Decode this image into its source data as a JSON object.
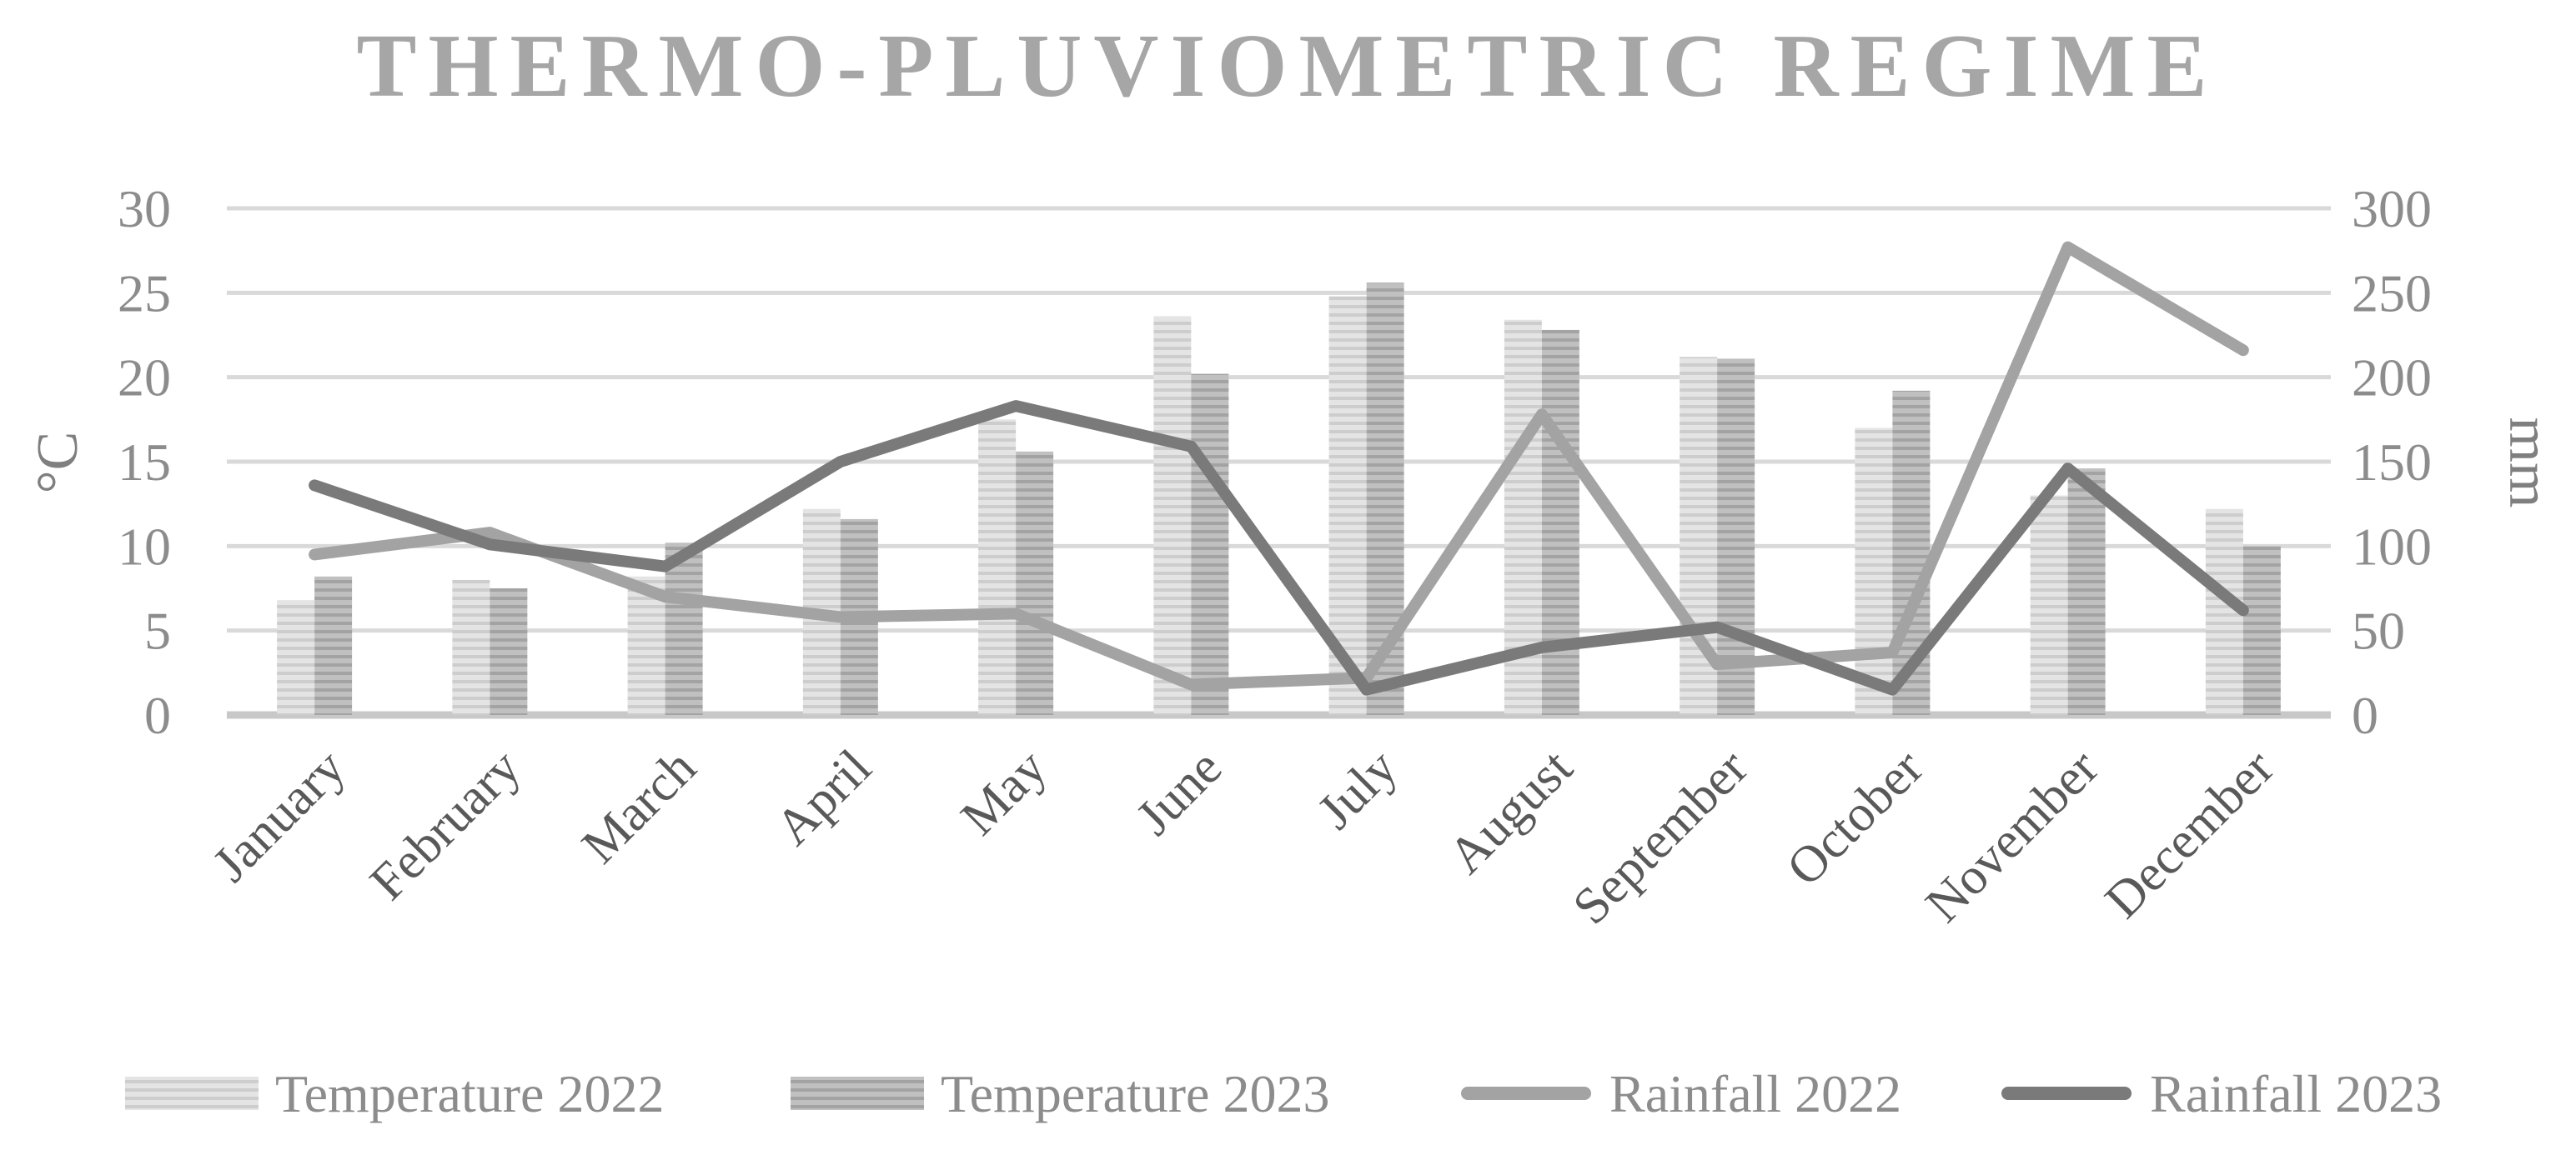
{
  "chart_data": {
    "type": "bar+line",
    "title": "THERMO-PLUVIOMETRIC REGIME",
    "categories": [
      "January",
      "February",
      "March",
      "April",
      "May",
      "June",
      "July",
      "August",
      "September",
      "October",
      "November",
      "December"
    ],
    "y_left": {
      "label": "°C",
      "range": [
        0,
        30
      ],
      "ticks": [
        "0",
        "5",
        "10",
        "15",
        "20",
        "25",
        "30"
      ]
    },
    "y_right": {
      "label": "mm",
      "range": [
        0,
        300
      ],
      "ticks": [
        "0",
        "50",
        "100",
        "150",
        "200",
        "250",
        "300"
      ]
    },
    "series": [
      {
        "name": "Temperature 2022",
        "type": "bar",
        "axis": "left",
        "color": "#e2e2e2",
        "stripe": "#cfcfcf",
        "values": [
          6.8,
          8.0,
          8.2,
          12.2,
          17.5,
          23.6,
          24.8,
          23.4,
          21.2,
          17.0,
          13.0,
          12.2
        ]
      },
      {
        "name": "Temperature 2023",
        "type": "bar",
        "axis": "left",
        "color": "#bdbdbd",
        "stripe": "#a5a5a5",
        "values": [
          8.2,
          7.5,
          10.2,
          11.6,
          15.6,
          20.2,
          25.6,
          22.8,
          21.1,
          19.2,
          14.6,
          10.0
        ]
      },
      {
        "name": "Rainfall 2022",
        "type": "line",
        "axis": "right",
        "color": "#a3a3a3",
        "values": [
          95,
          108,
          70,
          58,
          60,
          18,
          22,
          178,
          30,
          37,
          277,
          216
        ]
      },
      {
        "name": "Rainfall 2023",
        "type": "line",
        "axis": "right",
        "color": "#7a7a7a",
        "values": [
          136,
          101,
          88,
          150,
          183,
          159,
          15,
          40,
          52,
          15,
          146,
          62
        ]
      }
    ],
    "grid": true,
    "legend_position": "bottom"
  }
}
